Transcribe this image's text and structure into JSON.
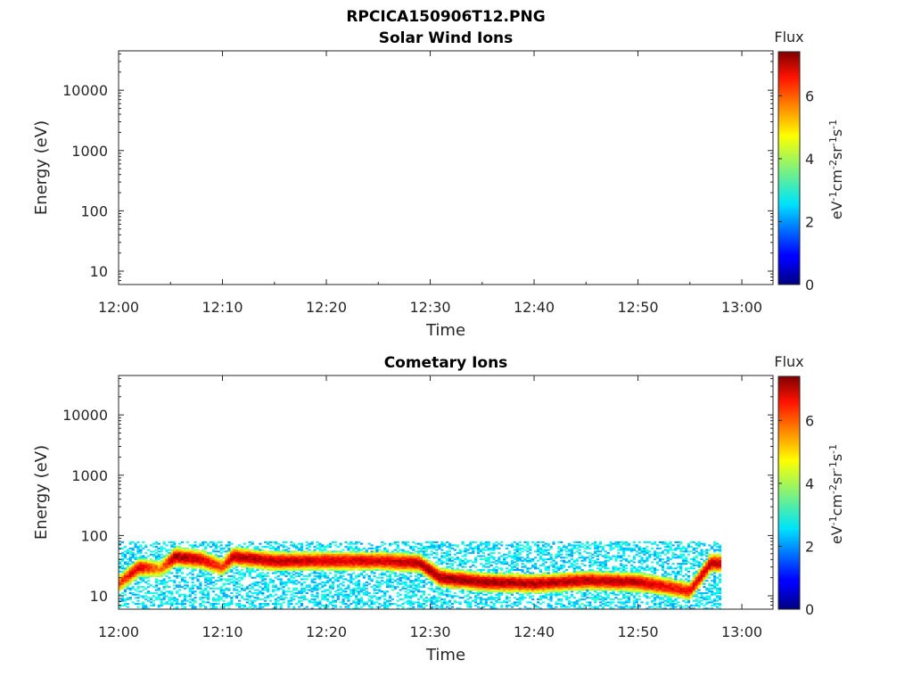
{
  "figure": {
    "title": "RPCICA150906T12.PNG"
  },
  "chart_data": [
    {
      "type": "heatmap",
      "title": "Solar Wind Ions",
      "xlabel": "Time",
      "ylabel": "Energy (eV)",
      "x_ticks": [
        "12:00",
        "12:10",
        "12:20",
        "12:30",
        "12:40",
        "12:50",
        "13:00"
      ],
      "x_range_minutes_after_1200": [
        0,
        63
      ],
      "y_scale": "log",
      "y_range": [
        6,
        45000
      ],
      "y_ticks": [
        "10",
        "100",
        "1000",
        "10000"
      ],
      "colorbar": {
        "label": "Flux",
        "units": "eV-1cm-2sr-1s-1",
        "range": [
          0,
          7.4
        ],
        "ticks": [
          "0",
          "2",
          "4",
          "6"
        ]
      },
      "data": []
    },
    {
      "type": "heatmap",
      "title": "Cometary Ions",
      "xlabel": "Time",
      "ylabel": "Energy (eV)",
      "x_ticks": [
        "12:00",
        "12:10",
        "12:20",
        "12:30",
        "12:40",
        "12:50",
        "13:00"
      ],
      "x_range_minutes_after_1200": [
        0,
        63
      ],
      "y_scale": "log",
      "y_range": [
        6,
        45000
      ],
      "y_ticks": [
        "10",
        "100",
        "1000",
        "10000"
      ],
      "colorbar": {
        "label": "Flux",
        "units": "eV-1cm-2sr-1s-1",
        "range": [
          0,
          7.4
        ],
        "ticks": [
          "0",
          "2",
          "4",
          "6"
        ]
      },
      "data_coverage_minutes": [
        0,
        58
      ],
      "background_energy_range_eV": [
        6,
        80
      ],
      "background_flux": 2.5,
      "peak_band": [
        {
          "t": 0,
          "e": 16,
          "flux": 6.0
        },
        {
          "t": 2,
          "e": 30,
          "flux": 6.8
        },
        {
          "t": 4,
          "e": 28,
          "flux": 5.5
        },
        {
          "t": 5.5,
          "e": 45,
          "flux": 7.2
        },
        {
          "t": 8,
          "e": 40,
          "flux": 6.8
        },
        {
          "t": 10,
          "e": 30,
          "flux": 6.0
        },
        {
          "t": 11,
          "e": 45,
          "flux": 7.0
        },
        {
          "t": 15,
          "e": 38,
          "flux": 7.0
        },
        {
          "t": 20,
          "e": 38,
          "flux": 6.8
        },
        {
          "t": 25,
          "e": 38,
          "flux": 6.8
        },
        {
          "t": 29,
          "e": 35,
          "flux": 7.0
        },
        {
          "t": 31,
          "e": 20,
          "flux": 7.2
        },
        {
          "t": 35,
          "e": 17,
          "flux": 7.2
        },
        {
          "t": 40,
          "e": 16,
          "flux": 7.0
        },
        {
          "t": 45,
          "e": 18,
          "flux": 7.0
        },
        {
          "t": 50,
          "e": 17,
          "flux": 7.0
        },
        {
          "t": 53,
          "e": 14,
          "flux": 6.5
        },
        {
          "t": 55,
          "e": 12,
          "flux": 6.5
        },
        {
          "t": 57,
          "e": 35,
          "flux": 7.0
        },
        {
          "t": 58,
          "e": 35,
          "flux": 6.8
        }
      ]
    }
  ]
}
